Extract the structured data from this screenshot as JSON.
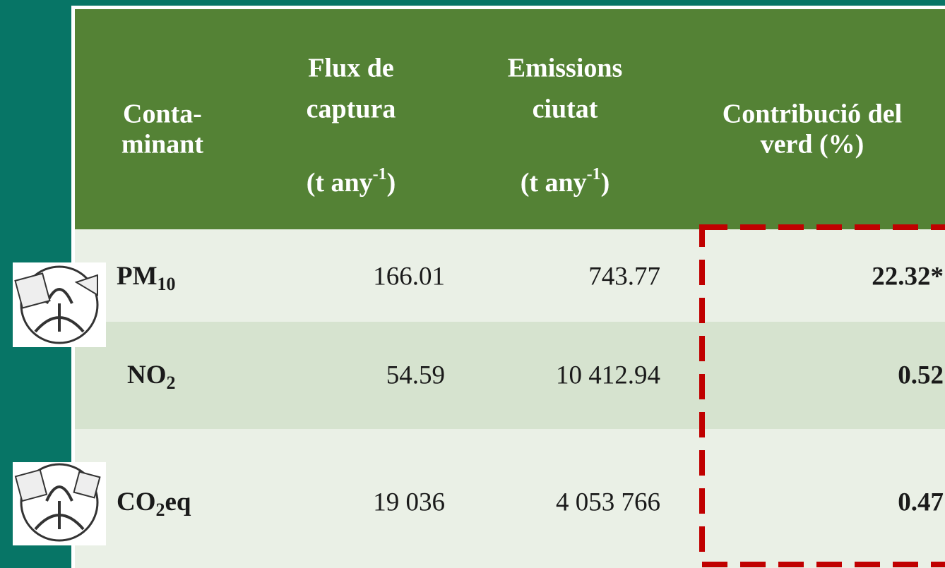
{
  "table": {
    "header": [
      {
        "lines": [
          "Conta-",
          "minant"
        ]
      },
      {
        "lines": [
          "Flux de",
          "captura"
        ],
        "unit": [
          "(t any",
          "-1",
          ")"
        ]
      },
      {
        "lines": [
          "Emissions",
          "ciutat"
        ],
        "unit": [
          "(t any",
          "-1",
          ")"
        ]
      },
      {
        "lines": [
          "Contribució del",
          "verd (%)"
        ]
      }
    ],
    "rows": [
      {
        "pollutant": [
          "PM",
          "10"
        ],
        "flux": "166.01",
        "emissions": "743.77",
        "contribution": "22.32*"
      },
      {
        "pollutant": [
          "NO",
          "2"
        ],
        "flux": "54.59",
        "emissions": "10 412.94",
        "contribution": "0.52"
      },
      {
        "pollutant": [
          "CO",
          "2",
          "eq"
        ],
        "flux": "19 036",
        "emissions": "4 053 766",
        "contribution": "0.47"
      }
    ]
  }
}
